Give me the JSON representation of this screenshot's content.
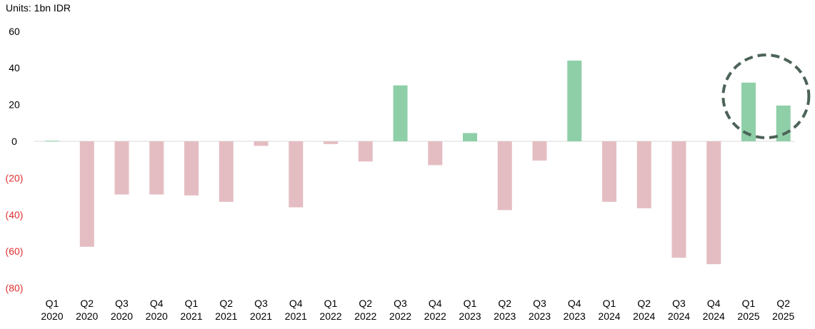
{
  "units_label": "Units: 1bn IDR",
  "colors": {
    "positive": "#8ecfa7",
    "negative": "#e4bdc2",
    "positive_tick": "#000000",
    "negative_tick": "#e03030",
    "highlight": "#4c6357"
  },
  "chart_data": {
    "type": "bar",
    "title": "",
    "xlabel": "",
    "ylabel": "",
    "ylim": [
      -80,
      60
    ],
    "yticks": [
      {
        "value": 60,
        "label": "60"
      },
      {
        "value": 40,
        "label": "40"
      },
      {
        "value": 20,
        "label": "20"
      },
      {
        "value": 0,
        "label": "0"
      },
      {
        "value": -20,
        "label": "(20)"
      },
      {
        "value": -40,
        "label": "(40)"
      },
      {
        "value": -60,
        "label": "(60)"
      },
      {
        "value": -80,
        "label": "(80)"
      }
    ],
    "categories": [
      {
        "quarter": "Q1",
        "year": "2020"
      },
      {
        "quarter": "Q2",
        "year": "2020"
      },
      {
        "quarter": "Q3",
        "year": "2020"
      },
      {
        "quarter": "Q4",
        "year": "2020"
      },
      {
        "quarter": "Q1",
        "year": "2021"
      },
      {
        "quarter": "Q2",
        "year": "2021"
      },
      {
        "quarter": "Q3",
        "year": "2021"
      },
      {
        "quarter": "Q4",
        "year": "2021"
      },
      {
        "quarter": "Q1",
        "year": "2022"
      },
      {
        "quarter": "Q2",
        "year": "2022"
      },
      {
        "quarter": "Q3",
        "year": "2022"
      },
      {
        "quarter": "Q4",
        "year": "2022"
      },
      {
        "quarter": "Q1",
        "year": "2023"
      },
      {
        "quarter": "Q2",
        "year": "2023"
      },
      {
        "quarter": "Q3",
        "year": "2023"
      },
      {
        "quarter": "Q4",
        "year": "2023"
      },
      {
        "quarter": "Q1",
        "year": "2024"
      },
      {
        "quarter": "Q2",
        "year": "2024"
      },
      {
        "quarter": "Q3",
        "year": "2024"
      },
      {
        "quarter": "Q4",
        "year": "2024"
      },
      {
        "quarter": "Q1",
        "year": "2025"
      },
      {
        "quarter": "Q2",
        "year": "2025"
      }
    ],
    "values": [
      0.3,
      -57.5,
      -29,
      -29,
      -29.5,
      -33,
      -2.5,
      -36,
      -1.5,
      -11,
      30.5,
      -13,
      4.5,
      -37.5,
      -10.5,
      44,
      -33,
      -36.5,
      -63.5,
      -67,
      32,
      19.5
    ],
    "highlight": {
      "categories": [
        "Q1 2025",
        "Q2 2025"
      ],
      "style": "dashed-circle"
    }
  }
}
